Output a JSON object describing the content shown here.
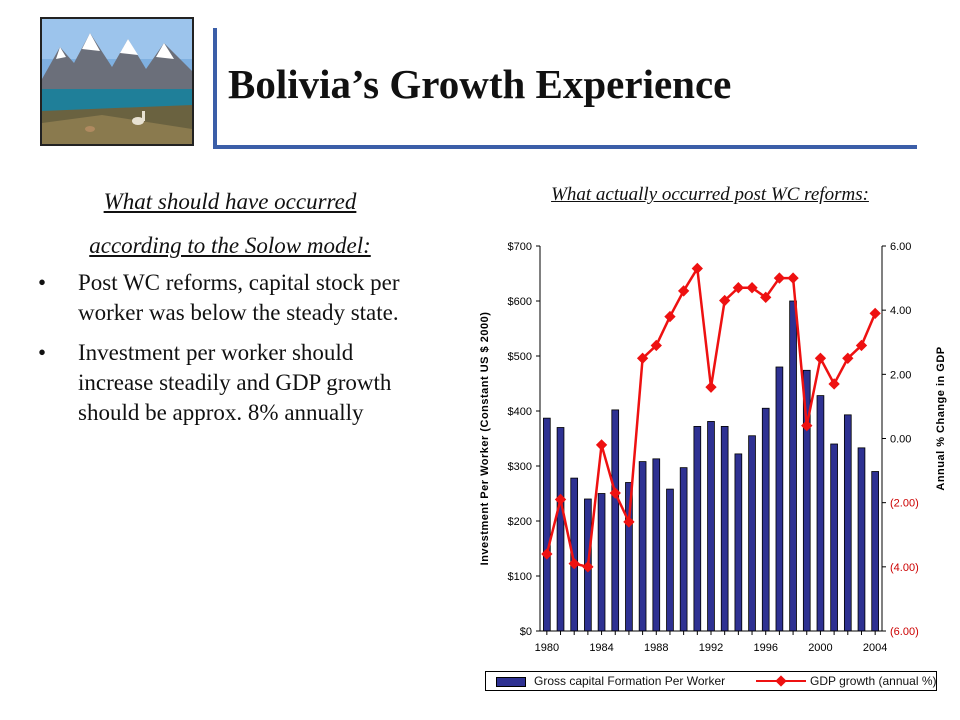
{
  "slide": {
    "title": "Bolivia’s Growth Experience",
    "left_subtitle_line1": "What should have occurred",
    "left_subtitle_line2": "according to the Solow model:",
    "bullets": [
      "Post WC reforms, capital stock per worker was below the steady state.",
      "Investment per worker should increase steadily and GDP growth should be approx. 8% annually"
    ],
    "bullet_glyph": "•",
    "right_subtitle": "What actually occurred post WC reforms:",
    "accent_color": "#3b5ea8"
  },
  "chart_data": {
    "type": "bar",
    "years": [
      1980,
      1981,
      1982,
      1983,
      1984,
      1985,
      1986,
      1987,
      1988,
      1989,
      1990,
      1991,
      1992,
      1993,
      1994,
      1995,
      1996,
      1997,
      1998,
      1999,
      2000,
      2001,
      2002,
      2003,
      2004
    ],
    "x_tick_labels": [
      "1980",
      "1984",
      "1988",
      "1992",
      "1996",
      "2000",
      "2004"
    ],
    "series": [
      {
        "name": "Gross capital Formation Per Worker",
        "type": "bar",
        "axis": "left",
        "color": "#2e3192",
        "values": [
          387,
          370,
          278,
          240,
          250,
          402,
          270,
          308,
          313,
          258,
          297,
          372,
          381,
          372,
          322,
          355,
          405,
          480,
          600,
          474,
          428,
          340,
          393,
          333,
          290
        ]
      },
      {
        "name": "GDP growth (annual %)",
        "type": "line",
        "axis": "right",
        "color": "#ee1111",
        "values": [
          -3.6,
          -1.9,
          -3.9,
          -4.0,
          -0.2,
          -1.7,
          -2.6,
          2.5,
          2.9,
          3.8,
          4.6,
          5.3,
          1.6,
          4.3,
          4.7,
          4.7,
          4.4,
          5.0,
          5.0,
          0.4,
          2.5,
          1.7,
          2.5,
          2.9,
          3.9
        ]
      }
    ],
    "left_axis": {
      "label": "Investment Per Worker (Constant US $ 2000)",
      "min": 0,
      "max": 700,
      "ticks": [
        0,
        100,
        200,
        300,
        400,
        500,
        600,
        700
      ],
      "tick_labels": [
        "$0",
        "$100",
        "$200",
        "$300",
        "$400",
        "$500",
        "$600",
        "$700"
      ]
    },
    "right_axis": {
      "label": "Annual % Change in GDP",
      "min": -6,
      "max": 6,
      "ticks": [
        -6,
        -4,
        -2,
        0,
        2,
        4,
        6
      ],
      "tick_labels": [
        "(6.00)",
        "(4.00)",
        "(2.00)",
        "0.00",
        "2.00",
        "4.00",
        "6.00"
      ],
      "negative_label_color": "#cc0000"
    },
    "legend": [
      "Gross capital Formation Per Worker",
      "GDP growth (annual %)"
    ],
    "legend_position": "bottom",
    "grid": false
  }
}
